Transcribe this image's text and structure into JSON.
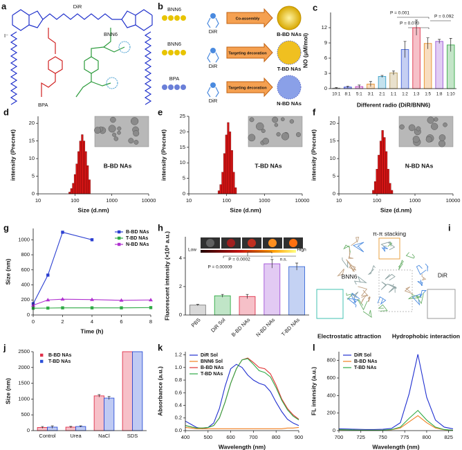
{
  "diagrams": {
    "a": {
      "panel": "a",
      "labels": [
        "DiR",
        "BNN6",
        "BPA",
        "I⁻"
      ]
    },
    "b": {
      "panel": "b",
      "rows": [
        {
          "material": "BNN6",
          "dye": "DiR",
          "process": "Co-assembly",
          "product": "B-BD NAs"
        },
        {
          "material": "BNN6",
          "dye": "DiR",
          "process": "Targeting decoration",
          "product": "T-BD NAs"
        },
        {
          "material": "BPA",
          "dye": "DiR",
          "process": "Targeting decoration",
          "product": "N-BD NAs"
        }
      ]
    },
    "i": {
      "panel": "i",
      "labels": [
        "π-π stacking",
        "BNN6",
        "DiR",
        "Electrostatic attraction",
        "Hydrophobic interaction"
      ]
    }
  },
  "chart_data": [
    {
      "type": "bar",
      "panel": "c",
      "xlabel": "Different radio (DiR/BNN6)",
      "ylabel": "NO (μM/mol)",
      "categories": [
        "10:1",
        "8:1",
        "5:1",
        "3:1",
        "2:1",
        "1:1",
        "1:2",
        "1:3",
        "1:5",
        "1:8",
        "1:10"
      ],
      "values": [
        0.1,
        0.3,
        0.4,
        0.9,
        2.4,
        3.1,
        7.7,
        12.0,
        8.9,
        9.3,
        8.6
      ],
      "errors": [
        0.1,
        0.2,
        0.3,
        0.5,
        0.2,
        0.4,
        1.6,
        1.5,
        1.1,
        0.4,
        1.3
      ],
      "colors": [
        "#9e9e9e",
        "#2b3fd1",
        "#c040c0",
        "#e8902a",
        "#3aa0c8",
        "#b59a5a",
        "#3f5fd8",
        "#e0304a",
        "#e8902a",
        "#9b59d6",
        "#3aaa4a"
      ],
      "ylim": [
        0,
        15
      ],
      "yticks": [
        0,
        3,
        6,
        9,
        12
      ],
      "annotations": [
        "P = 0.001",
        "P = 0.070",
        "P = 0.092"
      ]
    },
    {
      "type": "histogram",
      "panel": "d",
      "xlabel": "Size (d.nm)",
      "ylabel": "intensity (Precnet)",
      "color": "#d41515",
      "bins": [
        68,
        76,
        85,
        95,
        106,
        119,
        133,
        149,
        167,
        187,
        209,
        234,
        262
      ],
      "values": [
        0.5,
        1.5,
        3,
        5.5,
        8.5,
        12,
        15,
        16.8,
        15,
        12,
        8,
        4
      ],
      "xscale": "log",
      "xlim": [
        10,
        10000
      ],
      "xticks": [
        10,
        100,
        1000,
        10000
      ],
      "ylim": [
        0,
        22
      ],
      "yticks": [
        0,
        5,
        10,
        15,
        20
      ],
      "annotations": [
        "B-BD NAs"
      ]
    },
    {
      "type": "histogram",
      "panel": "e",
      "xlabel": "Size (d.nm)",
      "ylabel": "intensity (Precnet)",
      "color": "#d41515",
      "bins": [
        59,
        66,
        74,
        83,
        93,
        104,
        116,
        130,
        146,
        163,
        183
      ],
      "values": [
        1,
        3,
        7,
        13,
        19,
        23,
        20,
        14,
        7,
        2
      ],
      "xscale": "log",
      "xlim": [
        10,
        10000
      ],
      "xticks": [
        10,
        100,
        1000,
        10000
      ],
      "ylim": [
        0,
        25
      ],
      "yticks": [
        0,
        5,
        10,
        15,
        20,
        25
      ],
      "annotations": [
        "T-BD NAs"
      ]
    },
    {
      "type": "histogram",
      "panel": "f",
      "xlabel": "Size (d.nm)",
      "ylabel": "intensity (Precnet)",
      "color": "#d41515",
      "bins": [
        76,
        85,
        95,
        106,
        119,
        133,
        149,
        167,
        187,
        209,
        234,
        262
      ],
      "values": [
        1,
        3.5,
        7,
        11,
        15,
        18,
        16,
        12,
        7,
        3,
        1
      ],
      "xscale": "log",
      "xlim": [
        10,
        10000
      ],
      "xticks": [
        10,
        100,
        1000,
        10000
      ],
      "ylim": [
        0,
        22
      ],
      "yticks": [
        0,
        5,
        10,
        15,
        20
      ],
      "annotations": [
        "N-BD NAs"
      ]
    },
    {
      "type": "line",
      "panel": "g",
      "xlabel": "Time (h)",
      "ylabel": "Size (nm)",
      "x": [
        0,
        1,
        2,
        4,
        6,
        8
      ],
      "series": [
        {
          "name": "B-BD NAs",
          "color": "#2b3fd1",
          "marker": "square",
          "values": [
            150,
            530,
            1100,
            1000,
            null,
            null
          ]
        },
        {
          "name": "T-BD NAs",
          "color": "#2faa45",
          "marker": "square",
          "values": [
            90,
            92,
            95,
            95,
            95,
            98
          ]
        },
        {
          "name": "N-BD NAs",
          "color": "#b030d0",
          "marker": "triangle",
          "values": [
            130,
            200,
            210,
            205,
            195,
            200
          ]
        }
      ],
      "xlim": [
        0,
        8
      ],
      "xticks": [
        0,
        2,
        4,
        6,
        8
      ],
      "ylim": [
        0,
        1150
      ],
      "yticks": [
        0,
        200,
        400,
        600,
        800,
        1000
      ],
      "legend": "upper right"
    },
    {
      "type": "bar",
      "panel": "h",
      "ylabel": "Fluorescent intensity (×10⁸ a.u.)",
      "categories": [
        "PBS",
        "DiR Sol",
        "B-BD NAs",
        "N-BD NAs",
        "T-BD NAs"
      ],
      "values": [
        0.7,
        1.35,
        1.3,
        3.6,
        3.4
      ],
      "errors": [
        0.05,
        0.1,
        0.15,
        0.3,
        0.25
      ],
      "colors": [
        "#808080",
        "#2faa45",
        "#e0304a",
        "#a050d8",
        "#3a6ad8"
      ],
      "ylim": [
        0,
        5.5
      ],
      "yticks": [
        0,
        2,
        4
      ],
      "annotations": [
        "Low",
        "High",
        "P = 0.00009",
        "P = 0.0002",
        "n.s."
      ]
    },
    {
      "type": "bar",
      "panel": "j",
      "ylabel": "Size (nm)",
      "categories": [
        "Control",
        "Urea",
        "NaCl",
        "SDS"
      ],
      "series": [
        {
          "name": "B-BD NAs",
          "color": "#e0304a",
          "values": [
            100,
            110,
            1100,
            2500
          ],
          "errors": [
            30,
            25,
            40,
            0
          ]
        },
        {
          "name": "T-BD NAs",
          "color": "#2b4fd8",
          "values": [
            110,
            130,
            1030,
            2500
          ],
          "errors": [
            40,
            20,
            50,
            0
          ]
        }
      ],
      "ylim": [
        0,
        2500
      ],
      "yticks": [
        0,
        500,
        1000,
        1500,
        2000,
        2500
      ],
      "legend": "upper left"
    },
    {
      "type": "line",
      "panel": "k",
      "xlabel": "Wavelength (nm)",
      "ylabel": "Absorbance (a.u.)",
      "x": [
        400,
        425,
        450,
        475,
        500,
        525,
        550,
        575,
        600,
        625,
        650,
        675,
        700,
        725,
        750,
        775,
        800,
        825,
        850,
        875,
        900
      ],
      "series": [
        {
          "name": "DiR Sol",
          "color": "#1f2fd0",
          "values": [
            0.15,
            0.1,
            0.05,
            0.03,
            0.05,
            0.12,
            0.35,
            0.7,
            0.98,
            1.05,
            1.0,
            0.88,
            0.8,
            0.75,
            0.72,
            0.62,
            0.45,
            0.3,
            0.18,
            0.12,
            0.08
          ]
        },
        {
          "name": "BNN6 Sol",
          "color": "#f07f1f",
          "values": [
            0.05,
            0.04,
            0.03,
            0.03,
            0.03,
            0.03,
            0.03,
            0.03,
            0.03,
            0.03,
            0.03,
            0.03,
            0.03,
            0.03,
            0.03,
            0.03,
            0.03,
            0.03,
            0.04,
            0.04,
            0.05
          ]
        },
        {
          "name": "B-BD NAs",
          "color": "#e03030",
          "values": [
            0.08,
            0.06,
            0.04,
            0.04,
            0.05,
            0.08,
            0.2,
            0.45,
            0.75,
            0.98,
            1.12,
            1.15,
            1.08,
            1.0,
            0.98,
            0.9,
            0.72,
            0.5,
            0.35,
            0.25,
            0.18
          ]
        },
        {
          "name": "T-BD NAs",
          "color": "#2faa45",
          "values": [
            0.08,
            0.06,
            0.04,
            0.04,
            0.05,
            0.08,
            0.2,
            0.45,
            0.75,
            0.98,
            1.12,
            1.14,
            1.05,
            0.95,
            0.92,
            0.85,
            0.68,
            0.48,
            0.33,
            0.23,
            0.17
          ]
        }
      ],
      "xlim": [
        400,
        900
      ],
      "xticks": [
        400,
        500,
        600,
        700,
        800,
        900
      ],
      "ylim": [
        0,
        1.25
      ],
      "yticks": [
        {
          "value": 0,
          "label": "0.0"
        },
        0.2,
        0.4,
        0.6,
        0.8,
        {
          "value": 1,
          "label": "1.0"
        },
        1.2
      ],
      "legend": "upper left"
    },
    {
      "type": "line",
      "panel": "l",
      "xlabel": "Wavelength (nm)",
      "ylabel": "FL intensity (a.u.)",
      "x": [
        700,
        710,
        720,
        730,
        740,
        750,
        760,
        770,
        780,
        790,
        800,
        810,
        820,
        830
      ],
      "series": [
        {
          "name": "DiR Sol",
          "color": "#1f2fd0",
          "values": [
            20,
            18,
            15,
            12,
            12,
            15,
            25,
            90,
            420,
            870,
            380,
            120,
            40,
            20
          ]
        },
        {
          "name": "B-BD NAs",
          "color": "#f07f1f",
          "values": [
            10,
            8,
            6,
            5,
            5,
            6,
            10,
            30,
            100,
            170,
            90,
            30,
            10,
            5
          ]
        },
        {
          "name": "T-BD NAs",
          "color": "#2faa45",
          "values": [
            10,
            8,
            6,
            5,
            5,
            6,
            12,
            40,
            140,
            230,
            120,
            40,
            12,
            5
          ]
        }
      ],
      "xlim": [
        700,
        830
      ],
      "xticks": [
        700,
        725,
        750,
        775,
        800,
        825
      ],
      "ylim": [
        0,
        900
      ],
      "yticks": [
        0,
        200,
        400,
        600,
        800
      ],
      "legend": "upper left"
    }
  ]
}
